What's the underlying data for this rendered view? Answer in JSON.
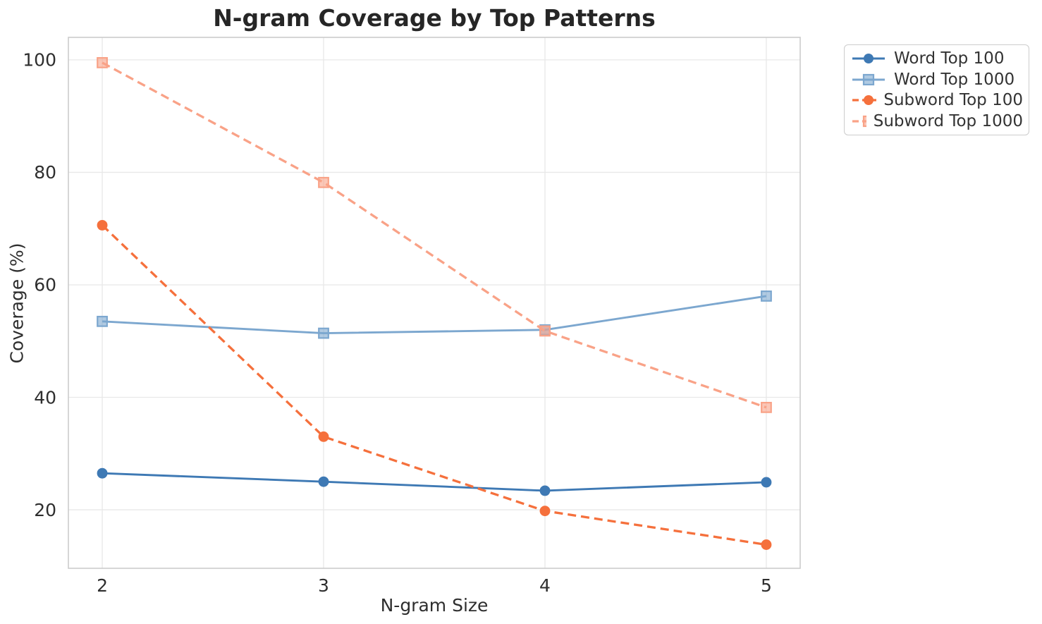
{
  "chart_data": {
    "type": "line",
    "title": "N-gram Coverage by Top Patterns",
    "xlabel": "N-gram Size",
    "ylabel": "Coverage (%)",
    "x": [
      2,
      3,
      4,
      5
    ],
    "x_tick_labels": [
      "2",
      "3",
      "4",
      "5"
    ],
    "y_ticks": [
      20,
      40,
      60,
      80,
      100
    ],
    "y_tick_labels": [
      "20",
      "40",
      "60",
      "80",
      "100"
    ],
    "xlim": [
      1.847,
      5.153
    ],
    "ylim": [
      9.6,
      104.0
    ],
    "grid": true,
    "legend_position": "outside-upper-right",
    "series": [
      {
        "name": "Word Top 100",
        "values": [
          26.5,
          25.0,
          23.4,
          24.9
        ],
        "color": "#3E79B4",
        "marker": "circle",
        "line_style": "solid"
      },
      {
        "name": "Word Top 1000",
        "values": [
          53.5,
          51.4,
          52.0,
          58.0
        ],
        "color": "#7CA7CF",
        "marker": "square",
        "line_style": "solid"
      },
      {
        "name": "Subword Top 100",
        "values": [
          70.6,
          33.0,
          19.8,
          13.8
        ],
        "color": "#F5703C",
        "marker": "circle",
        "line_style": "dashed"
      },
      {
        "name": "Subword Top 1000",
        "values": [
          99.5,
          78.2,
          51.8,
          38.2
        ],
        "color": "#F9A287",
        "marker": "square",
        "line_style": "dashed"
      }
    ],
    "colors": {
      "grid": "#e8e8e8",
      "spine": "#cccccc",
      "title_text": "#262626",
      "tick_text": "#2e2e2e",
      "legend_text": "#333333",
      "background": "#ffffff"
    }
  }
}
